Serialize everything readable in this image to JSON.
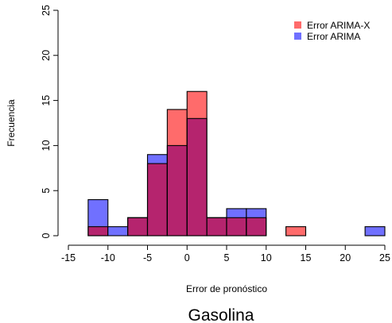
{
  "chart_data": {
    "type": "histogram",
    "title": "Gasolina",
    "xlabel": "Error de pronóstico",
    "ylabel": "Frecuencia",
    "xlim": [
      -15,
      25
    ],
    "ylim": [
      0,
      25
    ],
    "x_ticks": [
      -15,
      -10,
      -5,
      0,
      5,
      10,
      15,
      20,
      25
    ],
    "y_ticks": [
      0,
      5,
      10,
      15,
      20,
      25
    ],
    "bin_width": 2.5,
    "bin_edges": [
      -12.5,
      -10,
      -7.5,
      -5,
      -2.5,
      0,
      2.5,
      5,
      7.5,
      10,
      12.5,
      15,
      17.5,
      20,
      22.5,
      25
    ],
    "series": [
      {
        "name": "Error ARIMA-X",
        "color": "#FF6B6B",
        "counts": [
          1,
          0,
          2,
          8,
          14,
          16,
          2,
          2,
          2,
          0,
          1,
          0,
          0,
          0,
          0
        ]
      },
      {
        "name": "Error ARIMA",
        "color": "#7070FF",
        "counts": [
          4,
          1,
          2,
          9,
          10,
          13,
          2,
          3,
          3,
          0,
          0,
          0,
          0,
          0,
          1
        ]
      }
    ],
    "overlap_color": "#B5246E",
    "legend_position": "top-right",
    "grid": false
  }
}
